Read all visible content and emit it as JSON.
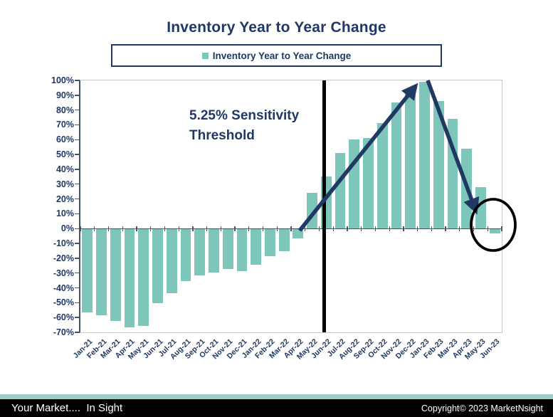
{
  "header": {
    "title": "Inventory Year to Year Change"
  },
  "legend": {
    "label": "Inventory Year to Year Change",
    "marker_color": "#7EC5BA"
  },
  "annotation": {
    "line1": "5.25% Sensitivity",
    "line2": "Threshold"
  },
  "chart_data": {
    "type": "bar",
    "title": "Inventory Year to Year Change",
    "legend": [
      "Inventory Year to Year Change"
    ],
    "legend_position": "top",
    "grid": false,
    "categories": [
      "Jan-21",
      "Feb-21",
      "Mar-21",
      "Apr-21",
      "May-21",
      "Jun-21",
      "Jul-21",
      "Aug-21",
      "Sep-21",
      "Oct-21",
      "Nov-21",
      "Dec-21",
      "Jan-22",
      "Feb-22",
      "Mar-22",
      "Apr-22",
      "May-22",
      "Jun-22",
      "Jul-22",
      "Aug-22",
      "Sep-22",
      "Oct-22",
      "Nov-22",
      "Dec-22",
      "Jan-23",
      "Feb-23",
      "Mar-23",
      "Apr-23",
      "May-23",
      "Jun-23"
    ],
    "values": [
      -56,
      -58,
      -62,
      -66,
      -65,
      -50,
      -43,
      -35,
      -31,
      -29,
      -27,
      -28,
      -24,
      -18,
      -15,
      -6,
      24,
      35,
      51,
      60,
      61,
      71,
      85,
      93,
      99,
      86,
      74,
      54,
      28,
      -3
    ],
    "ylabel_ticks": [
      "100%",
      "90%",
      "80%",
      "70%",
      "60%",
      "50%",
      "40%",
      "30%",
      "20%",
      "10%",
      "0%",
      "-10%",
      "-20%",
      "-30%",
      "-40%",
      "-50%",
      "-60%",
      "-70%"
    ],
    "ylim": [
      -70,
      100
    ],
    "ytick_step": 10,
    "bar_color": "#7EC5BA",
    "annotations": {
      "threshold_label": "5.25% Sensitivity Threshold",
      "vertical_line_between": [
        "May-22",
        "Jun-22"
      ],
      "up_arrow_peak_category": "Jan-23",
      "circled_category": "Jun-23"
    }
  },
  "footer": {
    "left": "Your Market....  In Sight",
    "right": "Copyright© 2023 MarketNsight",
    "strip_color": "#9CCFC7"
  },
  "colors": {
    "navy": "#1F3864",
    "bar_teal": "#7EC5BA",
    "axis": "#44546A",
    "plot_border": "#C9C9C9",
    "black": "#000000"
  }
}
